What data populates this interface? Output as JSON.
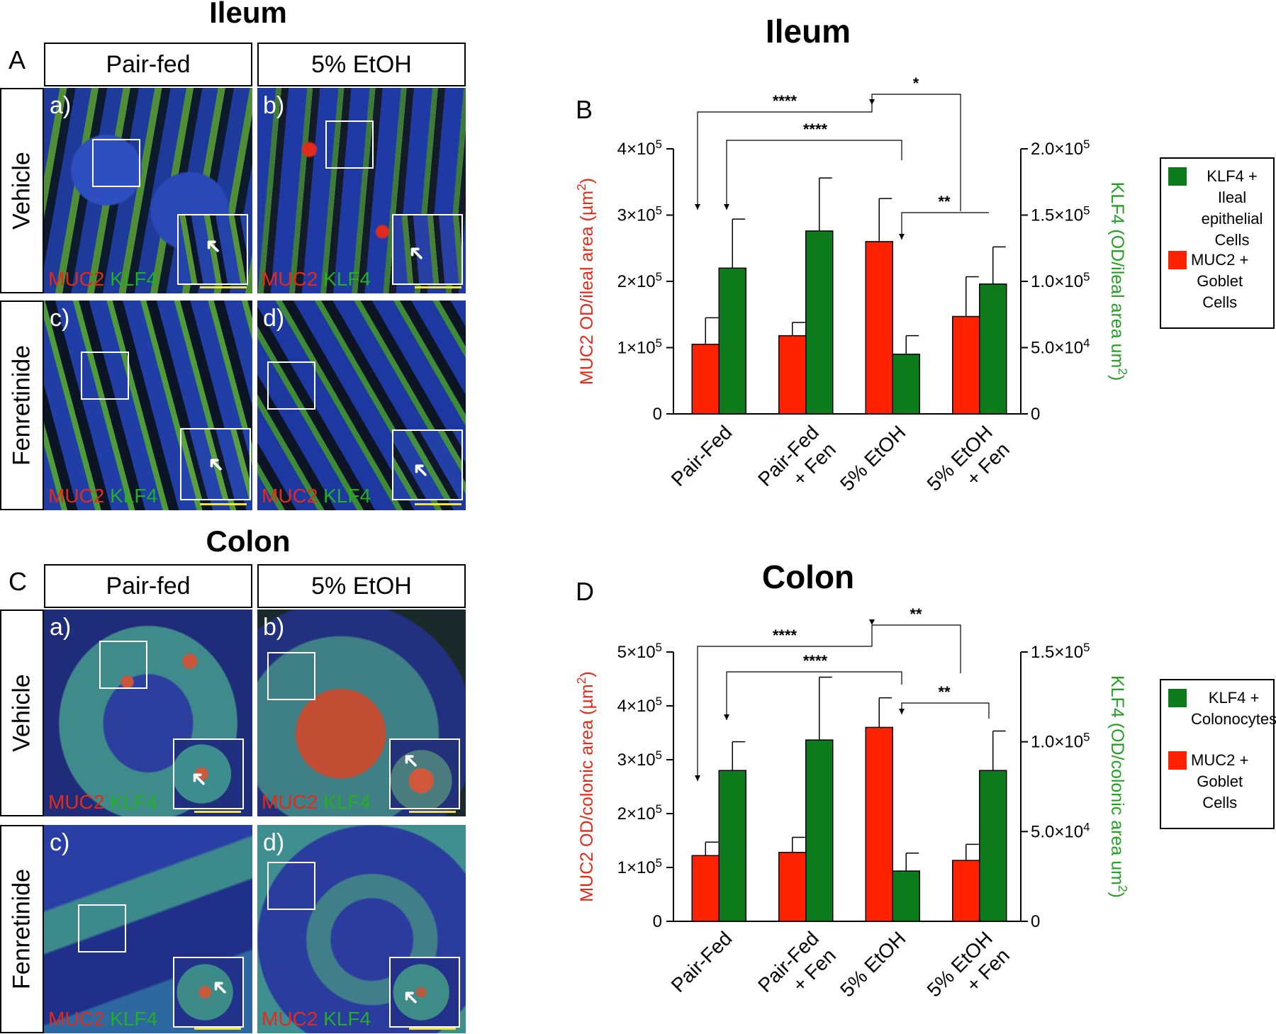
{
  "figure": {
    "ileum_title_left": "Ileum",
    "colon_title_left": "Colon",
    "panels": {
      "A": "A",
      "B": "B",
      "C": "C",
      "D": "D"
    },
    "col_headers": [
      "Pair-fed",
      "5% EtOH"
    ],
    "row_headers": [
      "Vehicle",
      "Fenretinide"
    ],
    "image_labels": [
      "a)",
      "b)",
      "c)",
      "d)"
    ],
    "stain": {
      "muc2": "MUC2",
      "klf4": "KLF4"
    },
    "colors": {
      "muc2_bar": "#ff2200",
      "klf4_bar": "#0d7a1b",
      "muc2_text": "#e52a1a",
      "klf4_text": "#22b022",
      "scale_bar": "#f2e341"
    }
  },
  "chart_data": [
    {
      "type": "bar",
      "panel": "B",
      "title": "Ileum",
      "categories": [
        "Pair-Fed",
        "Pair-Fed\n+ Fen",
        "5% EtOH",
        "5% EtOH\n+ Fen"
      ],
      "ylabel_left": [
        "MUC2 OD/ileal area (µm",
        "2",
        ")"
      ],
      "ylabel_right": [
        "KLF4 (OD/ileal area um",
        "2",
        ")"
      ],
      "ylim_left": [
        0,
        400000
      ],
      "ylim_right": [
        0,
        200000
      ],
      "yticks_left": [
        "0",
        "1×10",
        "2×10",
        "3×10",
        "4×10"
      ],
      "yticks_left_exp": [
        "",
        "5",
        "5",
        "5",
        "5"
      ],
      "yticks_right": [
        "0",
        "5.0×10",
        "1.0×10",
        "1.5×10",
        "2.0×10"
      ],
      "yticks_right_exp": [
        "",
        "4",
        "5",
        "5",
        "5"
      ],
      "series": [
        {
          "name": "MUC2 + Goblet Cells",
          "axis": "left",
          "color": "#ff2200",
          "values": [
            105000,
            118000,
            260000,
            147000
          ],
          "errors": [
            40000,
            20000,
            65000,
            60000
          ]
        },
        {
          "name": "KLF4 + Ileal epithelial Cells",
          "axis": "right",
          "color": "#0d7a1b",
          "values": [
            110000,
            138000,
            45000,
            98000
          ],
          "errors": [
            37000,
            40000,
            14000,
            28000
          ]
        }
      ],
      "legend": [
        {
          "color": "#0d7a1b",
          "lines": [
            "KLF4 +",
            "Ileal epithelial",
            "Cells"
          ]
        },
        {
          "color": "#ff2200",
          "lines": [
            "MUC2 +",
            "Goblet",
            "Cells"
          ]
        }
      ],
      "significance": [
        "****",
        "****",
        "*",
        "**"
      ]
    },
    {
      "type": "bar",
      "panel": "D",
      "title": "Colon",
      "categories": [
        "Pair-Fed",
        "Pair-Fed\n+ Fen",
        "5% EtOH",
        "5% EtOH\n+ Fen"
      ],
      "ylabel_left": [
        "MUC2 OD/colonic area (µm",
        "2",
        ")"
      ],
      "ylabel_right": [
        "KLF4 (OD/colonic area um",
        "2",
        ")"
      ],
      "ylim_left": [
        0,
        500000
      ],
      "ylim_right": [
        0,
        150000
      ],
      "yticks_left": [
        "0",
        "1×10",
        "2×10",
        "3×10",
        "4×10",
        "5×10"
      ],
      "yticks_left_exp": [
        "",
        "5",
        "5",
        "5",
        "5",
        "5"
      ],
      "yticks_right": [
        "0",
        "5.0×10",
        "1.0×10",
        "1.5×10"
      ],
      "yticks_right_exp": [
        "",
        "4",
        "5",
        "5"
      ],
      "series": [
        {
          "name": "MUC2 + Goblet Cells",
          "axis": "left",
          "color": "#ff2200",
          "values": [
            122000,
            128000,
            360000,
            113000
          ],
          "errors": [
            25000,
            28000,
            55000,
            30000
          ]
        },
        {
          "name": "KLF4 + Colonocytes",
          "axis": "right",
          "color": "#0d7a1b",
          "values": [
            84000,
            101000,
            28000,
            84000
          ],
          "errors": [
            16000,
            35000,
            10000,
            22000
          ]
        }
      ],
      "legend": [
        {
          "color": "#0d7a1b",
          "lines": [
            "KLF4 +",
            "Colonocytes"
          ]
        },
        {
          "color": "#ff2200",
          "lines": [
            "MUC2 +",
            "Goblet",
            "Cells"
          ]
        }
      ],
      "significance": [
        "****",
        "****",
        "**",
        "**"
      ]
    }
  ]
}
